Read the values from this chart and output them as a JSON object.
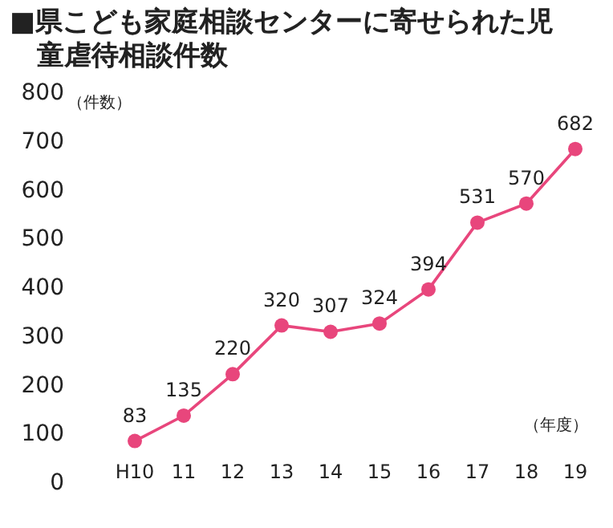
{
  "chart_data": {
    "type": "line",
    "title": "■県こども家庭相談センターに寄せられた児童虐待相談件数",
    "ylabel": "（件数）",
    "xlabel": "（年度）",
    "categories": [
      "H10",
      "11",
      "12",
      "13",
      "14",
      "15",
      "16",
      "17",
      "18",
      "19"
    ],
    "series": [
      {
        "color": "#e8467c",
        "values": [
          83,
          135,
          220,
          320,
          307,
          324,
          394,
          531,
          570,
          682
        ]
      }
    ],
    "ylim": [
      0,
      800
    ],
    "yticks": [
      0,
      100,
      200,
      300,
      400,
      500,
      600,
      700,
      800
    ],
    "data_labels": true,
    "marker": "circle",
    "grid": false
  }
}
